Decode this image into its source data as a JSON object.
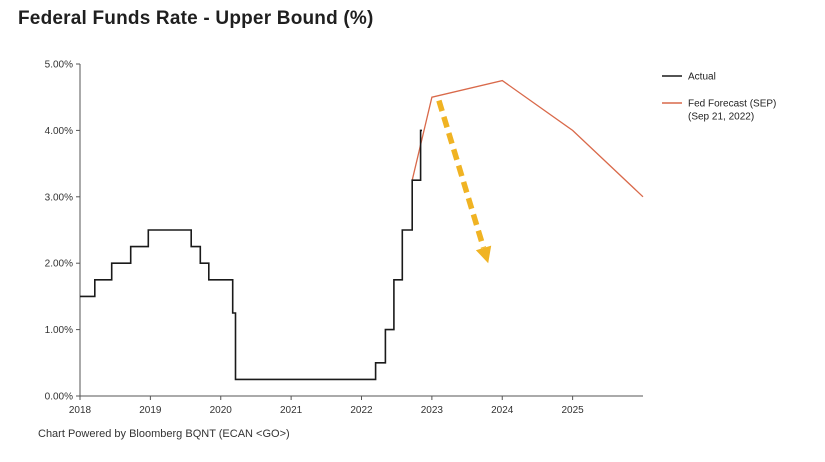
{
  "chart_data": {
    "type": "line",
    "title": "Federal Funds Rate - Upper Bound (%)",
    "footer": "Chart Powered by Bloomberg BQNT (ECAN <GO>)",
    "xlabel": "",
    "ylabel": "",
    "xlim": [
      2018,
      2026
    ],
    "ylim": [
      0,
      5
    ],
    "x_ticks": [
      2018,
      2019,
      2020,
      2021,
      2022,
      2023,
      2024,
      2025
    ],
    "x_tick_labels": [
      "2018",
      "2019",
      "2020",
      "2021",
      "2022",
      "2023",
      "2024",
      "2025"
    ],
    "y_ticks": [
      0,
      1,
      2,
      3,
      4,
      5
    ],
    "y_tick_labels": [
      "0.00%",
      "1.00%",
      "2.00%",
      "3.00%",
      "4.00%",
      "5.00%"
    ],
    "grid": false,
    "legend_position": "top-right",
    "colors": {
      "actual": "#1a1a1a",
      "forecast": "#d9694a",
      "arrow": "#f0b323"
    },
    "series": [
      {
        "name": "Actual",
        "line_style": "step",
        "points": [
          [
            2018.0,
            1.5
          ],
          [
            2018.21,
            1.5
          ],
          [
            2018.21,
            1.75
          ],
          [
            2018.45,
            1.75
          ],
          [
            2018.45,
            2.0
          ],
          [
            2018.72,
            2.0
          ],
          [
            2018.72,
            2.25
          ],
          [
            2018.97,
            2.25
          ],
          [
            2018.97,
            2.5
          ],
          [
            2019.58,
            2.5
          ],
          [
            2019.58,
            2.25
          ],
          [
            2019.71,
            2.25
          ],
          [
            2019.71,
            2.0
          ],
          [
            2019.83,
            2.0
          ],
          [
            2019.83,
            1.75
          ],
          [
            2020.17,
            1.75
          ],
          [
            2020.17,
            1.25
          ],
          [
            2020.21,
            1.25
          ],
          [
            2020.21,
            0.25
          ],
          [
            2022.2,
            0.25
          ],
          [
            2022.2,
            0.5
          ],
          [
            2022.34,
            0.5
          ],
          [
            2022.34,
            1.0
          ],
          [
            2022.46,
            1.0
          ],
          [
            2022.46,
            1.75
          ],
          [
            2022.58,
            1.75
          ],
          [
            2022.58,
            2.5
          ],
          [
            2022.72,
            2.5
          ],
          [
            2022.72,
            3.25
          ],
          [
            2022.84,
            3.25
          ],
          [
            2022.84,
            4.0
          ],
          [
            2022.86,
            4.0
          ]
        ]
      },
      {
        "name": "Fed Forecast (SEP)\n(Sep 21, 2022)",
        "legend_lines": [
          "Fed Forecast (SEP)",
          "(Sep 21, 2022)"
        ],
        "line_style": "linear",
        "points": [
          [
            2022.72,
            3.25
          ],
          [
            2023.0,
            4.5
          ],
          [
            2024.0,
            4.75
          ],
          [
            2025.0,
            4.0
          ],
          [
            2026.0,
            3.0
          ]
        ]
      }
    ],
    "annotations": [
      {
        "type": "dashed-arrow",
        "from": [
          2023.1,
          4.45
        ],
        "to": [
          2023.8,
          2.0
        ]
      }
    ]
  }
}
